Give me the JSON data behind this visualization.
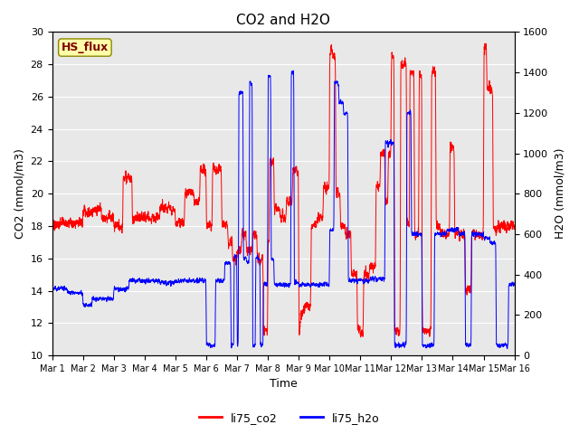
{
  "title": "CO2 and H2O",
  "xlabel": "Time",
  "ylabel_left": "CO2 (mmol/m3)",
  "ylabel_right": "H2O (mmol/m3)",
  "ylim_left": [
    10,
    30
  ],
  "ylim_right": [
    0,
    1600
  ],
  "yticks_left": [
    10,
    12,
    14,
    16,
    18,
    20,
    22,
    24,
    26,
    28,
    30
  ],
  "yticks_right": [
    0,
    200,
    400,
    600,
    800,
    1000,
    1200,
    1400,
    1600
  ],
  "xtick_labels": [
    "Mar 1",
    "Mar 2",
    "Mar 3",
    "Mar 4",
    "Mar 5",
    "Mar 6",
    "Mar 7",
    "Mar 8",
    "Mar 9",
    "Mar 10",
    "Mar 11",
    "Mar 12",
    "Mar 13",
    "Mar 14",
    "Mar 15",
    "Mar 16"
  ],
  "color_co2": "#FF0000",
  "color_h2o": "#0000FF",
  "legend_label_co2": "li75_co2",
  "legend_label_h2o": "li75_h2o",
  "watermark_text": "HS_flux",
  "watermark_bg": "#FFFFAA",
  "watermark_border": "#888800",
  "background_color": "#E8E8E8",
  "title_fontsize": 11,
  "axis_fontsize": 9,
  "tick_fontsize": 8,
  "legend_fontsize": 9,
  "watermark_fontsize": 9,
  "seed": 42
}
